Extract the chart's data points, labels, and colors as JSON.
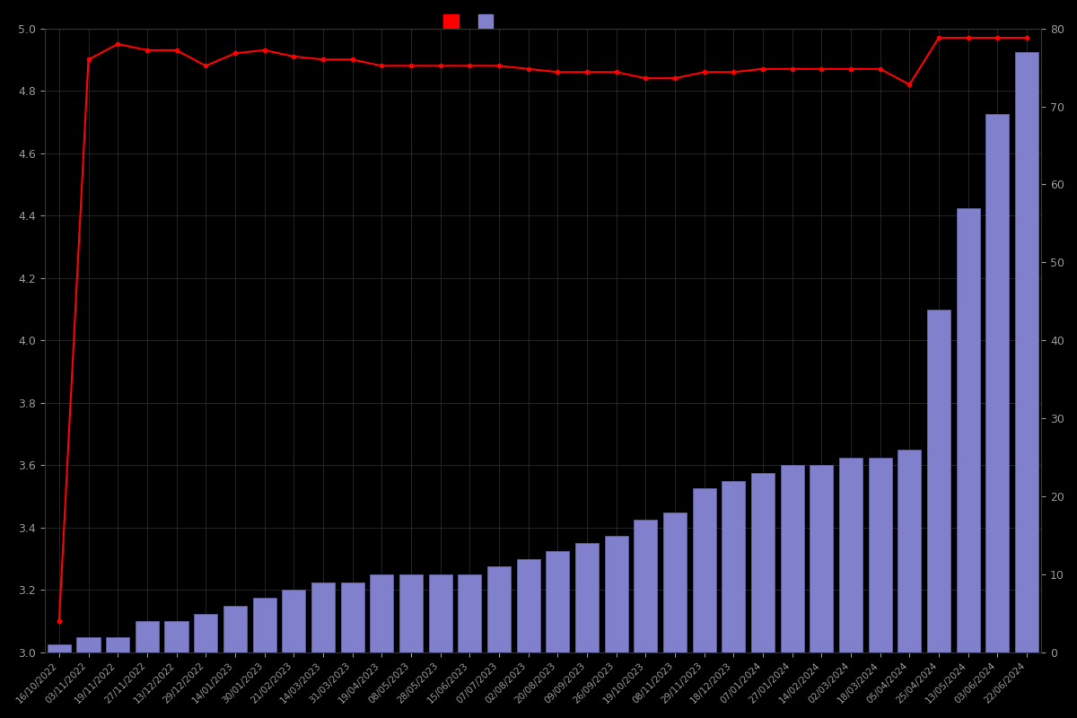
{
  "dates": [
    "16/10/2022",
    "03/11/2022",
    "19/11/2022",
    "27/11/2022",
    "13/12/2022",
    "29/12/2022",
    "14/01/2023",
    "30/01/2023",
    "21/02/2023",
    "14/03/2023",
    "31/03/2023",
    "19/04/2023",
    "08/05/2023",
    "28/05/2023",
    "15/06/2023",
    "07/07/2023",
    "02/08/2023",
    "20/08/2023",
    "09/09/2023",
    "26/09/2023",
    "19/10/2023",
    "08/11/2023",
    "29/11/2023",
    "18/12/2023",
    "07/01/2024",
    "27/01/2024",
    "14/02/2024",
    "02/03/2024",
    "18/03/2024",
    "05/04/2024",
    "25/04/2024",
    "13/05/2024",
    "03/06/2024",
    "22/06/2024"
  ],
  "bar_values": [
    1,
    2,
    2,
    4,
    4,
    5,
    6,
    7,
    8,
    9,
    9,
    10,
    10,
    10,
    10,
    11,
    12,
    13,
    14,
    15,
    17,
    18,
    21,
    22,
    23,
    24,
    24,
    25,
    25,
    26,
    44,
    57,
    69,
    77
  ],
  "line_values": [
    3.1,
    4.9,
    4.95,
    4.93,
    4.93,
    4.88,
    4.92,
    4.93,
    4.91,
    4.9,
    4.9,
    4.88,
    4.88,
    4.88,
    4.88,
    4.88,
    4.87,
    4.86,
    4.86,
    4.86,
    4.84,
    4.84,
    4.86,
    4.86,
    4.87,
    4.87,
    4.87,
    4.87,
    4.87,
    4.82,
    4.97,
    4.97,
    4.97,
    4.97
  ],
  "bar_color": "#8080cc",
  "bar_edge_color": "#6666aa",
  "line_color": "#ff0000",
  "marker_color": "#ff0000",
  "background_color": "#000000",
  "text_color": "#999999",
  "grid_color": "#333333",
  "ylim_left": [
    3.0,
    5.0
  ],
  "ylim_right": [
    0,
    80
  ],
  "left_ticks": [
    3.0,
    3.2,
    3.4,
    3.6,
    3.8,
    4.0,
    4.2,
    4.4,
    4.6,
    4.8,
    5.0
  ],
  "right_ticks": [
    0,
    10,
    20,
    30,
    40,
    50,
    60,
    70,
    80
  ],
  "legend_colors": [
    "#ff0000",
    "#8080cc"
  ]
}
